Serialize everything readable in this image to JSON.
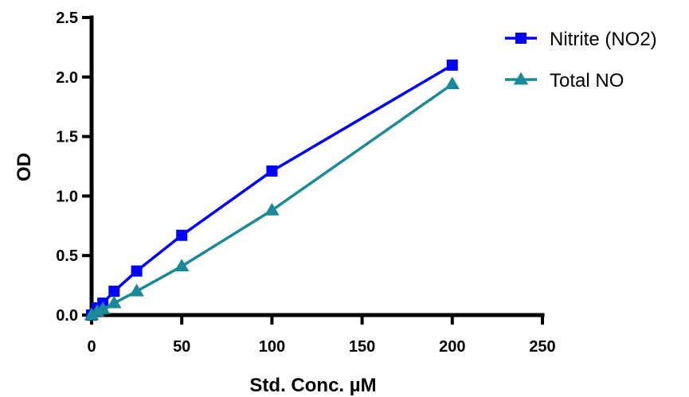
{
  "chart_data": {
    "type": "line",
    "xlabel": "Std. Conc. µM",
    "ylabel": "OD",
    "xlim": [
      0,
      250
    ],
    "ylim": [
      0,
      2.5
    ],
    "xticks": [
      "0",
      "50",
      "100",
      "150",
      "200",
      "250"
    ],
    "yticks": [
      "0.0",
      "0.5",
      "1.0",
      "1.5",
      "2.0",
      "2.5"
    ],
    "grid": false,
    "legend_position": "top-right",
    "series": [
      {
        "name": "Nitrite (NO2)",
        "marker": "square",
        "color": "#0000ff",
        "x": [
          0,
          3.125,
          6.25,
          12.5,
          25,
          50,
          100,
          200
        ],
        "y": [
          0.0,
          0.06,
          0.1,
          0.2,
          0.37,
          0.67,
          1.21,
          2.1
        ]
      },
      {
        "name": "Total NO",
        "marker": "triangle",
        "color": "#1a8a98",
        "x": [
          0,
          3.125,
          6.25,
          12.5,
          25,
          50,
          100,
          200
        ],
        "y": [
          0.0,
          0.03,
          0.05,
          0.1,
          0.2,
          0.41,
          0.88,
          1.94
        ]
      }
    ]
  }
}
